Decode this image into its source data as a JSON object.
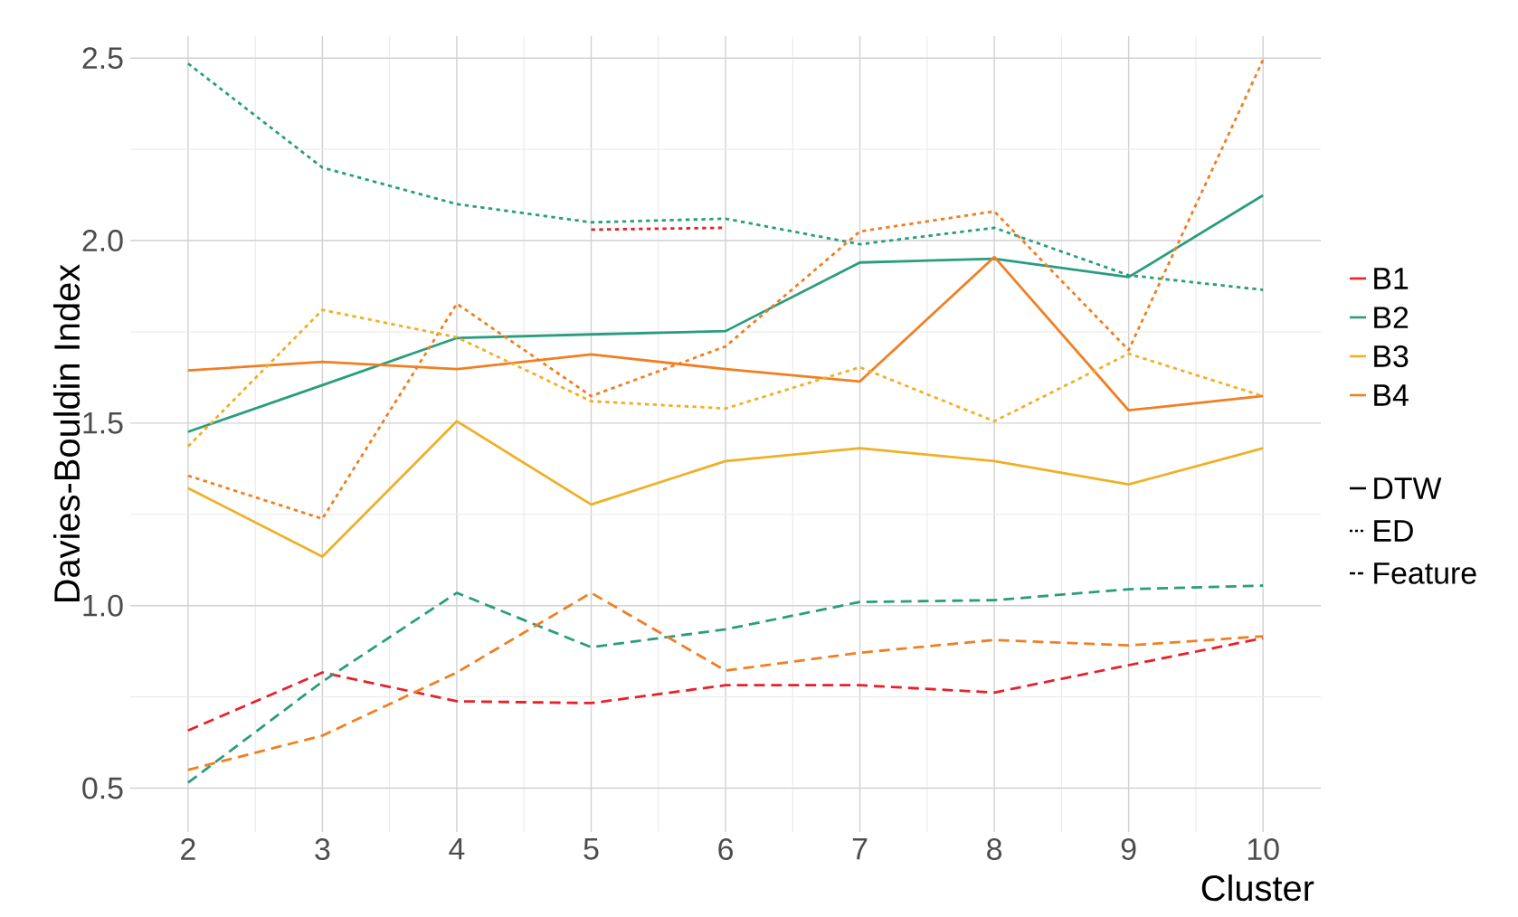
{
  "chart_data": {
    "type": "line",
    "xlabel": "Cluster",
    "ylabel": "Davies-Bouldin Index",
    "categories": [
      "2",
      "3",
      "4",
      "5",
      "6",
      "7",
      "8",
      "9",
      "10"
    ],
    "ylim": [
      0.38,
      2.56
    ],
    "yticks": [
      0.5,
      {
        "value": 1,
        "label": "1.0"
      },
      1.5,
      {
        "value": 2,
        "label": "2.0"
      },
      2.5
    ],
    "grid": true,
    "legend": "right",
    "marker": "none",
    "annotations": [
      "DTW",
      "ED",
      "Feature"
    ],
    "series": [
      {
        "name": "B1",
        "color": "#e8202a",
        "line_style": "dotted",
        "values": [
          null,
          null,
          null,
          2.03,
          2.035,
          null,
          null,
          null,
          null
        ]
      },
      {
        "name": "B2",
        "color": "#2a9d7f",
        "line_style": "solid",
        "values": [
          1.476,
          1.604,
          1.733,
          1.743,
          1.752,
          1.94,
          1.95,
          1.9,
          2.124
        ]
      },
      {
        "name": "B3",
        "color": "#efb027",
        "line_style": "solid",
        "values": [
          1.322,
          1.134,
          1.505,
          1.277,
          1.396,
          1.431,
          1.396,
          1.332,
          1.431
        ]
      },
      {
        "name": "B4",
        "color": "#f07f22",
        "line_style": "solid",
        "values": [
          1.644,
          1.668,
          1.648,
          1.688,
          1.648,
          1.614,
          1.955,
          1.535,
          1.574
        ]
      },
      {
        "color": "#2a9d7f",
        "line_style": "dotted",
        "values": [
          2.485,
          2.2,
          2.1,
          2.05,
          2.06,
          1.99,
          2.035,
          1.905,
          1.865
        ]
      },
      {
        "color": "#f07f22",
        "line_style": "dotted",
        "values": [
          1.356,
          1.238,
          1.827,
          1.574,
          1.71,
          2.025,
          2.08,
          1.7,
          2.495
        ]
      },
      {
        "color": "#efb027",
        "line_style": "dotted",
        "values": [
          1.436,
          1.81,
          1.735,
          1.56,
          1.54,
          1.653,
          1.505,
          1.69,
          1.574
        ]
      },
      {
        "color": "#e8202a",
        "line_style": "dashed",
        "values": [
          0.658,
          0.817,
          0.738,
          0.733,
          0.782,
          0.782,
          0.762,
          0.837,
          0.911
        ]
      },
      {
        "color": "#2a9d7f",
        "line_style": "dashed",
        "values": [
          0.515,
          0.792,
          1.035,
          0.886,
          0.935,
          1.01,
          1.015,
          1.045,
          1.055
        ]
      },
      {
        "color": "#f07f22",
        "line_style": "dashed",
        "values": [
          0.55,
          0.644,
          0.817,
          1.035,
          0.822,
          0.871,
          0.906,
          0.891,
          0.916
        ]
      }
    ]
  }
}
